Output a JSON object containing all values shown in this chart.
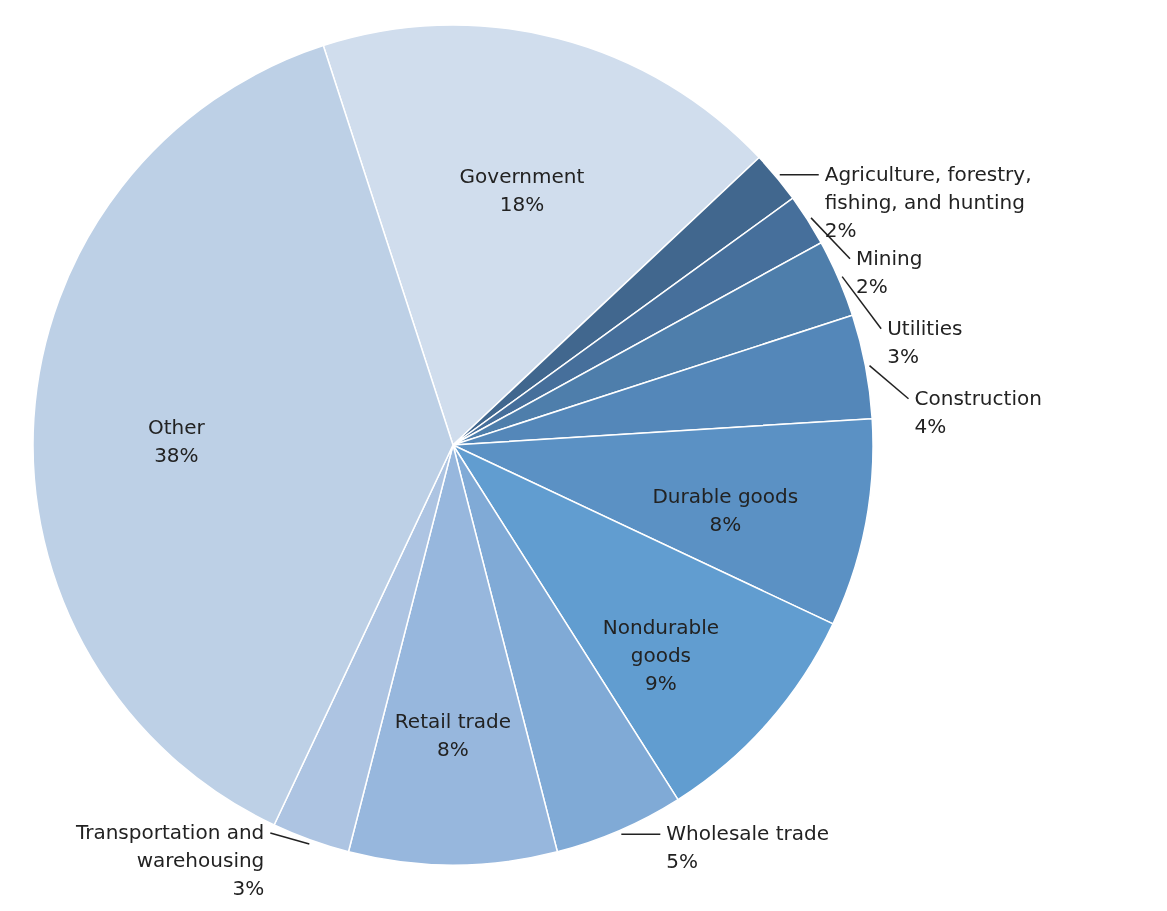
{
  "chart_data": {
    "type": "pie",
    "categories": [
      "Government",
      "Agriculture, forestry, fishing, and hunting",
      "Mining",
      "Utilities",
      "Construction",
      "Durable goods",
      "Nondurable goods",
      "Wholesale trade",
      "Retail trade",
      "Transportation and warehousing",
      "Other"
    ],
    "values": [
      18,
      2,
      2,
      3,
      4,
      8,
      9,
      5,
      8,
      3,
      38
    ],
    "value_labels": [
      "18%",
      "2%",
      "2%",
      "3%",
      "4%",
      "8%",
      "9%",
      "5%",
      "8%",
      "3%",
      "38%"
    ],
    "colors": [
      "#d0dded",
      "#41678e",
      "#466f9b",
      "#4e7eab",
      "#5487b9",
      "#5b91c4",
      "#619dd0",
      "#80aad6",
      "#97b7dd",
      "#adc4e2",
      "#bdd0e6"
    ]
  }
}
